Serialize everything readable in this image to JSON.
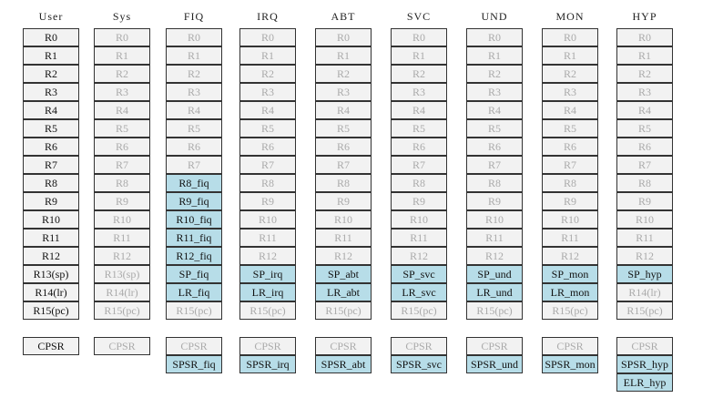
{
  "columns": [
    {
      "header": "User",
      "registers": [
        "R0",
        "R1",
        "R2",
        "R3",
        "R4",
        "R5",
        "R6",
        "R7",
        "R8",
        "R9",
        "R10",
        "R11",
        "R12",
        "R13(sp)",
        "R14(lr)",
        "R15(pc)"
      ],
      "status": [
        "CPSR"
      ]
    },
    {
      "header": "Sys",
      "registers": [
        "R0",
        "R1",
        "R2",
        "R3",
        "R4",
        "R5",
        "R6",
        "R7",
        "R8",
        "R9",
        "R10",
        "R11",
        "R12",
        "R13(sp)",
        "R14(lr)",
        "R15(pc)"
      ],
      "status": [
        "CPSR"
      ]
    },
    {
      "header": "FIQ",
      "registers": [
        "R0",
        "R1",
        "R2",
        "R3",
        "R4",
        "R5",
        "R6",
        "R7",
        "R8_fiq",
        "R9_fiq",
        "R10_fiq",
        "R11_fiq",
        "R12_fiq",
        "SP_fiq",
        "LR_fiq",
        "R15(pc)"
      ],
      "status": [
        "CPSR",
        "SPSR_fiq"
      ]
    },
    {
      "header": "IRQ",
      "registers": [
        "R0",
        "R1",
        "R2",
        "R3",
        "R4",
        "R5",
        "R6",
        "R7",
        "R8",
        "R9",
        "R10",
        "R11",
        "R12",
        "SP_irq",
        "LR_irq",
        "R15(pc)"
      ],
      "status": [
        "CPSR",
        "SPSR_irq"
      ]
    },
    {
      "header": "ABT",
      "registers": [
        "R0",
        "R1",
        "R2",
        "R3",
        "R4",
        "R5",
        "R6",
        "R7",
        "R8",
        "R9",
        "R10",
        "R11",
        "R12",
        "SP_abt",
        "LR_abt",
        "R15(pc)"
      ],
      "status": [
        "CPSR",
        "SPSR_abt"
      ]
    },
    {
      "header": "SVC",
      "registers": [
        "R0",
        "R1",
        "R2",
        "R3",
        "R4",
        "R5",
        "R6",
        "R7",
        "R8",
        "R9",
        "R10",
        "R11",
        "R12",
        "SP_svc",
        "LR_svc",
        "R15(pc)"
      ],
      "status": [
        "CPSR",
        "SPSR_svc"
      ]
    },
    {
      "header": "UND",
      "registers": [
        "R0",
        "R1",
        "R2",
        "R3",
        "R4",
        "R5",
        "R6",
        "R7",
        "R8",
        "R9",
        "R10",
        "R11",
        "R12",
        "SP_und",
        "LR_und",
        "R15(pc)"
      ],
      "status": [
        "CPSR",
        "SPSR_und"
      ]
    },
    {
      "header": "MON",
      "registers": [
        "R0",
        "R1",
        "R2",
        "R3",
        "R4",
        "R5",
        "R6",
        "R7",
        "R8",
        "R9",
        "R10",
        "R11",
        "R12",
        "SP_mon",
        "LR_mon",
        "R15(pc)"
      ],
      "status": [
        "CPSR",
        "SPSR_mon"
      ]
    },
    {
      "header": "HYP",
      "registers": [
        "R0",
        "R1",
        "R2",
        "R3",
        "R4",
        "R5",
        "R6",
        "R7",
        "R8",
        "R9",
        "R10",
        "R11",
        "R12",
        "SP_hyp",
        "R14(lr)",
        "R15(pc)"
      ],
      "status": [
        "CPSR",
        "SPSR_hyp",
        "ELR_hyp"
      ]
    }
  ]
}
